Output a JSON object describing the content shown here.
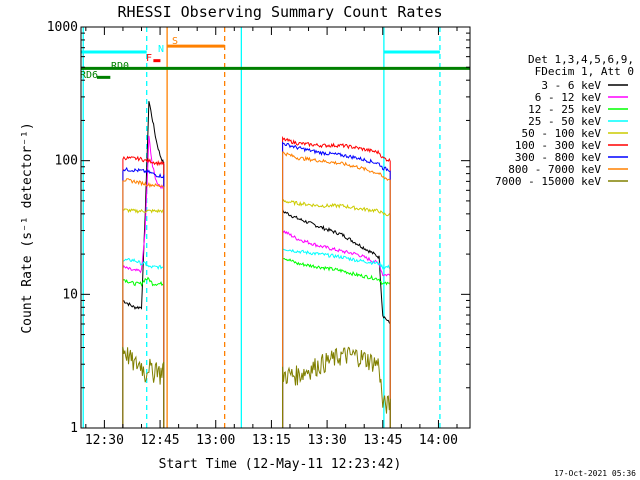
{
  "chart_data": {
    "type": "line",
    "title": "RHESSI Observing Summary Count Rates",
    "xlabel": "Start Time (12-May-11 12:23:42)",
    "ylabel": "Count Rate (s⁻¹ detector⁻¹)",
    "yscale": "log",
    "ylim": [
      1,
      1000
    ],
    "xlim_minutes_after_1200": [
      23.7,
      128.5
    ],
    "x_ticks": [
      {
        "t": 30,
        "label": "12:30"
      },
      {
        "t": 45,
        "label": "12:45"
      },
      {
        "t": 60,
        "label": "13:00"
      },
      {
        "t": 75,
        "label": "13:15"
      },
      {
        "t": 90,
        "label": "13:30"
      },
      {
        "t": 105,
        "label": "13:45"
      },
      {
        "t": 120,
        "label": "14:00"
      }
    ],
    "y_ticks": [
      {
        "v": 1,
        "label": "1"
      },
      {
        "v": 10,
        "label": "10"
      },
      {
        "v": 100,
        "label": "100"
      },
      {
        "v": 1000,
        "label": "1000"
      }
    ],
    "legend_header": [
      "Det 1,3,4,5,6,9,",
      "FDecim 1, Att 0"
    ],
    "series": [
      {
        "name": "3 - 6 keV",
        "color": "#000000",
        "seg1": {
          "t": [
            35,
            38,
            40,
            41,
            42,
            43,
            44,
            45,
            46
          ],
          "v": [
            9,
            8,
            8,
            40,
            280,
            200,
            140,
            110,
            95
          ]
        },
        "seg2": {
          "t": [
            78,
            82,
            88,
            94,
            98,
            104,
            105,
            107
          ],
          "v": [
            42,
            37,
            32,
            28,
            24,
            19,
            7,
            6
          ]
        }
      },
      {
        "name": "6 - 12 keV",
        "color": "#ff00ff",
        "seg1": {
          "t": [
            35,
            38,
            40,
            41,
            42,
            43,
            44,
            45,
            46
          ],
          "v": [
            16,
            15,
            15,
            30,
            150,
            90,
            70,
            65,
            62
          ]
        },
        "seg2": {
          "t": [
            78,
            82,
            88,
            94,
            98,
            104,
            105,
            107
          ],
          "v": [
            30,
            26,
            23,
            21,
            20,
            17,
            14,
            14
          ]
        }
      },
      {
        "name": "12 - 25 keV",
        "color": "#00ff00",
        "seg1": {
          "t": [
            35,
            38,
            40,
            41,
            42,
            43,
            44,
            45,
            46
          ],
          "v": [
            13,
            12,
            12,
            13,
            13,
            12,
            12,
            12,
            12
          ]
        },
        "seg2": {
          "t": [
            78,
            82,
            88,
            94,
            98,
            104,
            105,
            107
          ],
          "v": [
            19,
            17,
            16,
            15,
            14,
            13,
            12,
            12
          ]
        }
      },
      {
        "name": "25 - 50 keV",
        "color": "#00ffff",
        "seg1": {
          "t": [
            35,
            38,
            40,
            41,
            42,
            43,
            44,
            45,
            46
          ],
          "v": [
            18,
            18,
            17,
            17,
            16,
            16,
            16,
            16,
            16
          ]
        },
        "seg2": {
          "t": [
            78,
            82,
            88,
            94,
            98,
            104,
            105,
            107
          ],
          "v": [
            22,
            21,
            20,
            19,
            18,
            17,
            16,
            16
          ]
        }
      },
      {
        "name": "50 - 100 keV",
        "color": "#cccc00",
        "seg1": {
          "t": [
            35,
            38,
            40,
            41,
            42,
            43,
            44,
            45,
            46
          ],
          "v": [
            43,
            42,
            42,
            42,
            42,
            42,
            42,
            42,
            42
          ]
        },
        "seg2": {
          "t": [
            78,
            82,
            88,
            94,
            98,
            104,
            105,
            107
          ],
          "v": [
            50,
            48,
            46,
            46,
            44,
            42,
            40,
            39
          ]
        }
      },
      {
        "name": "100 - 300 keV",
        "color": "#ff0000",
        "seg1": {
          "t": [
            35,
            38,
            40,
            41,
            42,
            43,
            44,
            45,
            46
          ],
          "v": [
            105,
            104,
            103,
            100,
            100,
            98,
            96,
            96,
            95
          ]
        },
        "seg2": {
          "t": [
            78,
            82,
            88,
            94,
            98,
            104,
            105,
            107
          ],
          "v": [
            145,
            135,
            130,
            130,
            125,
            115,
            105,
            100
          ]
        }
      },
      {
        "name": "300 - 800 keV",
        "color": "#0000ff",
        "seg1": {
          "t": [
            35,
            38,
            40,
            41,
            42,
            43,
            44,
            45,
            46
          ],
          "v": [
            86,
            85,
            84,
            83,
            82,
            80,
            78,
            77,
            76
          ]
        },
        "seg2": {
          "t": [
            78,
            82,
            88,
            94,
            98,
            104,
            105,
            107
          ],
          "v": [
            135,
            125,
            115,
            110,
            105,
            95,
            88,
            85
          ]
        }
      },
      {
        "name": "800 - 7000 keV",
        "color": "#ff8000",
        "seg1": {
          "t": [
            35,
            38,
            40,
            41,
            42,
            43,
            44,
            45,
            46
          ],
          "v": [
            72,
            70,
            68,
            67,
            66,
            66,
            65,
            65,
            65
          ]
        },
        "seg2": {
          "t": [
            78,
            82,
            88,
            94,
            98,
            104,
            105,
            107
          ],
          "v": [
            115,
            105,
            100,
            95,
            90,
            80,
            75,
            72
          ]
        }
      },
      {
        "name": "7000 - 15000 keV",
        "color": "#808000",
        "seg1": {
          "t": [
            35,
            38,
            40,
            41,
            42,
            43,
            44,
            45,
            46
          ],
          "v": [
            4,
            3,
            3,
            2.5,
            3,
            2.5,
            3,
            2.5,
            3
          ]
        },
        "seg2": {
          "t": [
            78,
            82,
            88,
            94,
            98,
            104,
            105,
            107
          ],
          "v": [
            2.5,
            2.5,
            3,
            3.5,
            3.5,
            3,
            1.5,
            1.5
          ]
        }
      }
    ],
    "state_bars": [
      {
        "label": "N",
        "color": "#00ffff",
        "v": 650,
        "spans": [
          [
            23.7,
            41.4
          ],
          [
            105.3,
            120.4
          ]
        ]
      },
      {
        "label": "S",
        "color": "#ff8000",
        "v": 720,
        "spans": [
          [
            46.9,
            62.4
          ]
        ]
      },
      {
        "label": "F",
        "color": "#ff0000",
        "v": 560,
        "spans": [
          [
            43.2,
            45.1
          ]
        ]
      },
      {
        "label": "RD0",
        "color": "#008000",
        "v": 490,
        "spans": [
          [
            23.7,
            128.5
          ]
        ]
      },
      {
        "label": "RD6",
        "color": "#008000",
        "v": 420,
        "spans": [
          [
            28.0,
            31.6
          ]
        ]
      }
    ],
    "vertical_lines": [
      {
        "t": 24.3,
        "color": "#00ffff",
        "style": "solid"
      },
      {
        "t": 41.4,
        "color": "#00ffff",
        "style": "dashed"
      },
      {
        "t": 46.9,
        "color": "#ff8000",
        "style": "solid"
      },
      {
        "t": 62.4,
        "color": "#ff8000",
        "style": "dashed"
      },
      {
        "t": 66.9,
        "color": "#00ffff",
        "style": "solid"
      },
      {
        "t": 105.3,
        "color": "#00ffff",
        "style": "solid"
      },
      {
        "t": 120.4,
        "color": "#00ffff",
        "style": "dashed"
      }
    ],
    "timestamp": "17-Oct-2021 05:36"
  }
}
